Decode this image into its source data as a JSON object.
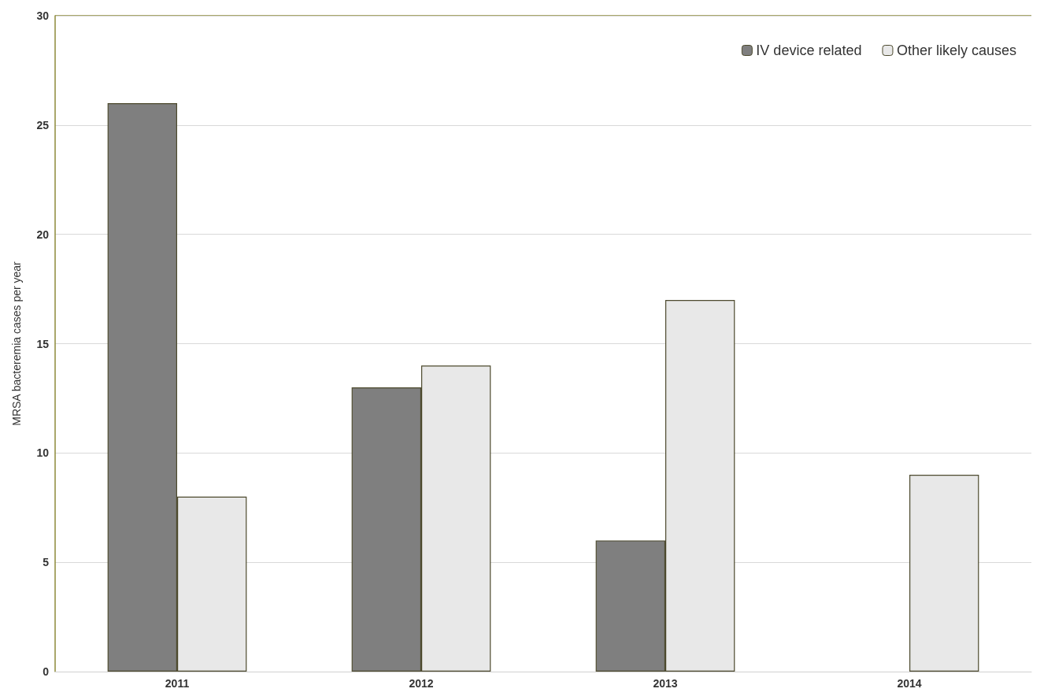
{
  "chart_data": {
    "type": "bar",
    "ylabel": "MRSA bacteremia cases per year",
    "categories": [
      "2011",
      "2012",
      "2013",
      "2014"
    ],
    "series": [
      {
        "name": "IV device related",
        "color": "#7f7f7f",
        "values": [
          26,
          13,
          6,
          null
        ]
      },
      {
        "name": "Other likely causes",
        "color": "#e8e8e8",
        "values": [
          8,
          14,
          17,
          9
        ]
      }
    ],
    "ylim": [
      0,
      30
    ],
    "yticks": [
      0,
      5,
      10,
      15,
      20,
      25,
      30
    ],
    "grid": "y",
    "legend": "top right"
  }
}
